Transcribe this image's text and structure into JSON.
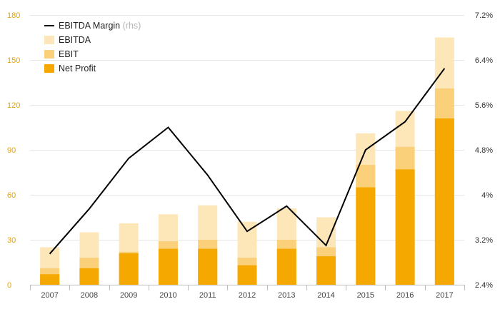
{
  "chart_data": {
    "type": "bar",
    "categories": [
      "2007",
      "2008",
      "2009",
      "2010",
      "2011",
      "2012",
      "2013",
      "2014",
      "2015",
      "2016",
      "2017"
    ],
    "series": [
      {
        "name": "EBITDA",
        "values": [
          25,
          35,
          41,
          47,
          53,
          42,
          51,
          45,
          101,
          116,
          165
        ]
      },
      {
        "name": "EBIT",
        "values": [
          11,
          18,
          22,
          29,
          30,
          18,
          30,
          25,
          80,
          92,
          131
        ]
      },
      {
        "name": "Net Profit",
        "values": [
          7,
          11,
          21,
          24,
          24,
          13,
          24,
          19,
          65,
          77,
          111
        ]
      }
    ],
    "line_series": {
      "name": "EBITDA Margin",
      "name_note": "(rhs)",
      "values": [
        2.95,
        3.75,
        4.65,
        5.2,
        4.35,
        3.35,
        3.8,
        3.1,
        4.8,
        5.3,
        6.25
      ]
    },
    "ylim": [
      0,
      180
    ],
    "y_ticks": [
      "0",
      "30",
      "60",
      "90",
      "120",
      "150",
      "180"
    ],
    "y2lim": [
      2.4,
      7.2
    ],
    "y2_ticks": [
      "2.4%",
      "3.2%",
      "4%",
      "4.8%",
      "5.6%",
      "6.4%",
      "7.2%"
    ],
    "grid": true,
    "legend_position": "top-left",
    "colors": {
      "EBITDA": "#fde7b8",
      "EBIT": "#fbd07a",
      "Net Profit": "#f5a800",
      "line": "#000000",
      "left_axis": "#e8a400",
      "grid": "#e6e6e6"
    }
  }
}
